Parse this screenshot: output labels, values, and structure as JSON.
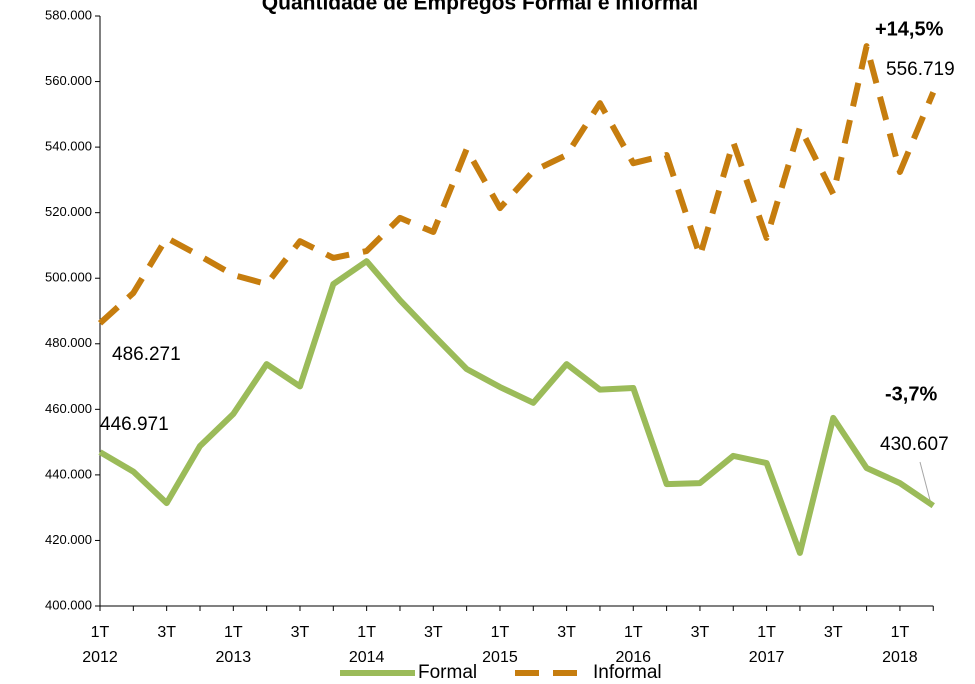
{
  "chart_data": {
    "type": "line",
    "title": "Quantidade de Empregos Formal e Informal",
    "categories": [
      "1T",
      null,
      "3T",
      null,
      "1T",
      null,
      "3T",
      null,
      "1T",
      null,
      "3T",
      null,
      "1T",
      null,
      "3T",
      null,
      "1T",
      null,
      "3T",
      null,
      "1T",
      null,
      "3T",
      null,
      "1T",
      null
    ],
    "years": [
      "2012",
      "2013",
      "2014",
      "2015",
      "2016",
      "2017",
      "2018"
    ],
    "series": [
      {
        "name": "Formal",
        "color": "#9BBB59",
        "dash": false,
        "values": [
          446971,
          441000,
          431400,
          448800,
          458600,
          473800,
          467000,
          498200,
          505200,
          493300,
          482700,
          472300,
          466800,
          462000,
          473800,
          466000,
          466500,
          437200,
          437500,
          445800,
          443600,
          416200,
          457400,
          442100,
          437500,
          430607
        ],
        "value_labels": [
          "446.971",
          null,
          null,
          null,
          null,
          null,
          null,
          null,
          null,
          null,
          null,
          null,
          null,
          null,
          null,
          null,
          null,
          null,
          null,
          null,
          null,
          null,
          null,
          null,
          null,
          "430.607"
        ]
      },
      {
        "name": "Informal",
        "color": "#C67D0E",
        "dash": true,
        "values": [
          486271,
          495500,
          512300,
          506800,
          501000,
          498200,
          511300,
          506200,
          508300,
          518400,
          514100,
          539400,
          521400,
          532700,
          537600,
          553400,
          535100,
          537600,
          506800,
          541500,
          512300,
          546100,
          525700,
          570800,
          532400,
          556719
        ],
        "value_labels": [
          "486.271",
          null,
          null,
          null,
          null,
          null,
          null,
          null,
          null,
          null,
          null,
          null,
          null,
          null,
          null,
          null,
          null,
          null,
          null,
          null,
          null,
          null,
          null,
          null,
          null,
          "556.719"
        ]
      }
    ],
    "annotations": [
      "+14,5%",
      "-3,7%"
    ],
    "ylim": [
      400000,
      580000
    ],
    "yticks": [
      {
        "value": 400000,
        "label": "400.000"
      },
      {
        "value": 420000,
        "label": "420.000"
      },
      {
        "value": 440000,
        "label": "440.000"
      },
      {
        "value": 460000,
        "label": "460.000"
      },
      {
        "value": 480000,
        "label": "480.000"
      },
      {
        "value": 500000,
        "label": "500.000"
      },
      {
        "value": 520000,
        "label": "520.000"
      },
      {
        "value": 540000,
        "label": "540.000"
      },
      {
        "value": 560000,
        "label": "560.000"
      },
      {
        "value": 580000,
        "label": "580.000"
      }
    ],
    "grid": false,
    "legend": "bottom"
  }
}
